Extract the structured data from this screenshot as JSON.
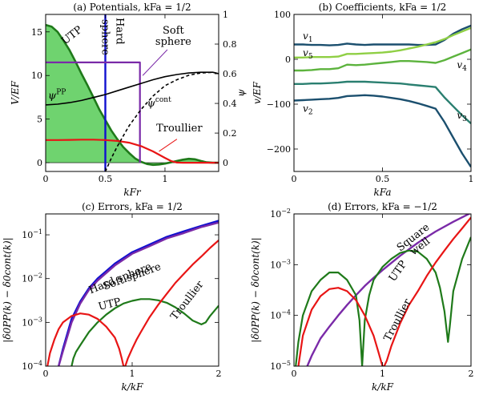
{
  "colors": {
    "utp": "#1f7a1a",
    "utp_fill": "#6fd36f",
    "hard": "#1010d0",
    "soft": "#7a2aa8",
    "troullier": "#e81515",
    "coef_dark": "#1b4f6e",
    "coef_mid": "#2a7f70",
    "coef_light": "#5cb33d",
    "coef_lighter": "#8fcf44"
  },
  "chart_data": [
    {
      "id": "a",
      "type": "line",
      "title": "(a) Potentials, kFa = 1/2",
      "xlabel": "kFr",
      "ylabel": "V/EF",
      "y2label": "ψ",
      "xlim": [
        0,
        1.45
      ],
      "ylim": [
        -1,
        17
      ],
      "y2lim": [
        -0.0588,
        1.0
      ],
      "xticks": [
        "0",
        "0.5",
        "1"
      ],
      "xtick_values": [
        0,
        0.5,
        1
      ],
      "yticks": [
        "0",
        "5",
        "10",
        "15"
      ],
      "ytick_values": [
        0,
        5,
        10,
        15
      ],
      "y2ticks": [
        "0",
        "0.2",
        "0.4",
        "0.6",
        "0.8",
        "1"
      ],
      "y2tick_values": [
        0,
        0.2,
        0.4,
        0.6,
        0.8,
        1.0
      ],
      "series": [
        {
          "key": "utp",
          "axis": "left",
          "x": [
            0,
            0.05,
            0.1,
            0.15,
            0.2,
            0.25,
            0.3,
            0.35,
            0.4,
            0.45,
            0.5,
            0.55,
            0.6,
            0.65,
            0.7,
            0.75,
            0.8,
            0.85,
            0.9,
            0.95,
            1.0,
            1.05,
            1.1,
            1.15,
            1.2,
            1.25,
            1.3,
            1.35,
            1.4,
            1.45
          ],
          "y": [
            15.8,
            15.6,
            15.0,
            14.0,
            12.9,
            11.6,
            10.2,
            8.9,
            7.5,
            6.1,
            4.9,
            3.7,
            2.7,
            1.8,
            1.1,
            0.5,
            0.1,
            -0.15,
            -0.25,
            -0.2,
            -0.1,
            0.05,
            0.2,
            0.35,
            0.45,
            0.4,
            0.2,
            0.05,
            0,
            0
          ]
        },
        {
          "key": "hard",
          "axis": "left",
          "x": [
            0.5,
            0.5
          ],
          "y": [
            -1,
            17
          ]
        },
        {
          "key": "soft",
          "axis": "left",
          "x": [
            0,
            0.79,
            0.79
          ],
          "y": [
            11.5,
            11.5,
            0
          ]
        },
        {
          "key": "troullier",
          "axis": "left",
          "x": [
            0,
            0.1,
            0.2,
            0.3,
            0.4,
            0.5,
            0.6,
            0.7,
            0.8,
            0.9,
            1.0,
            1.05,
            1.1,
            1.15,
            1.2,
            1.25,
            1.3,
            1.4,
            1.45
          ],
          "y": [
            2.6,
            2.6,
            2.62,
            2.65,
            2.65,
            2.6,
            2.5,
            2.3,
            1.9,
            1.3,
            0.55,
            0.2,
            0.02,
            0,
            0,
            0,
            0,
            0,
            0
          ]
        },
        {
          "key": "psipp",
          "axis": "right",
          "x": [
            0,
            0.1,
            0.2,
            0.3,
            0.4,
            0.5,
            0.6,
            0.7,
            0.8,
            0.9,
            1.0,
            1.1,
            1.2,
            1.3,
            1.4,
            1.45
          ],
          "y": [
            0.39,
            0.395,
            0.405,
            0.42,
            0.44,
            0.46,
            0.485,
            0.51,
            0.535,
            0.56,
            0.58,
            0.595,
            0.605,
            0.61,
            0.61,
            0.6
          ]
        }
      ],
      "psicont": {
        "x": [
          0.5,
          0.55,
          0.6,
          0.65,
          0.7,
          0.8,
          0.9,
          1.0,
          1.1,
          1.2,
          1.3,
          1.4,
          1.45
        ],
        "y": [
          -0.06,
          0.03,
          0.11,
          0.18,
          0.25,
          0.36,
          0.45,
          0.52,
          0.56,
          0.59,
          0.605,
          0.61,
          0.6
        ]
      },
      "labels": {
        "utp": "UTP",
        "hard1": "Hard",
        "hard2": "sphere",
        "soft1": "Soft",
        "soft2": "sphere",
        "troullier": "Troullier",
        "psipp": "ψPP",
        "psicont": "ψcont"
      }
    },
    {
      "id": "b",
      "type": "line",
      "title": "(b) Coefficients, kFa = 1/2",
      "xlabel": "kFa",
      "ylabel": "v/EF",
      "xlim": [
        0,
        1
      ],
      "ylim": [
        -250,
        100
      ],
      "xticks": [
        "0",
        "0.5",
        "1"
      ],
      "xtick_values": [
        0,
        0.5,
        1
      ],
      "yticks": [
        "100",
        "0",
        "−100",
        "−200"
      ],
      "ytick_values": [
        100,
        0,
        -100,
        -200
      ],
      "x": [
        0,
        0.05,
        0.1,
        0.15,
        0.2,
        0.25,
        0.3,
        0.35,
        0.4,
        0.45,
        0.5,
        0.55,
        0.6,
        0.65,
        0.7,
        0.75,
        0.8,
        0.85,
        0.9,
        0.95,
        1.0
      ],
      "series": [
        {
          "name": "v1",
          "key": "coef_dark",
          "y": [
            33,
            33,
            32,
            32,
            31,
            32,
            35,
            33,
            32,
            33,
            33,
            33,
            33,
            33,
            32,
            32,
            33,
            43,
            57,
            67,
            75
          ]
        },
        {
          "name": "v5",
          "key": "coef_lighter",
          "y": [
            4,
            4,
            5,
            5,
            5,
            6,
            12,
            12,
            13,
            14,
            15,
            17,
            20,
            24,
            28,
            33,
            38,
            45,
            54,
            62,
            70
          ]
        },
        {
          "name": "v4",
          "key": "coef_light",
          "y": [
            -25,
            -25,
            -24,
            -22,
            -22,
            -20,
            -12,
            -13,
            -12,
            -10,
            -8,
            -6,
            -4,
            -4,
            -5,
            -6,
            -8,
            -2,
            6,
            14,
            22
          ]
        },
        {
          "name": "v3",
          "key": "coef_mid",
          "y": [
            -55,
            -55,
            -54,
            -54,
            -53,
            -52,
            -50,
            -50,
            -50,
            -51,
            -52,
            -53,
            -54,
            -56,
            -58,
            -60,
            -62,
            -85,
            -105,
            -125,
            -143
          ]
        },
        {
          "name": "v2",
          "key": "coef_dark",
          "y": [
            -92,
            -91,
            -90,
            -89,
            -88,
            -86,
            -82,
            -81,
            -80,
            -81,
            -83,
            -86,
            -89,
            -93,
            -98,
            -104,
            -110,
            -140,
            -175,
            -210,
            -240
          ]
        }
      ],
      "labels": {
        "v1": "v1",
        "v5": "v5",
        "v4": "v4",
        "v3": "v3",
        "v2": "v2"
      }
    },
    {
      "id": "c",
      "type": "line",
      "title": "(c) Errors, kFa = 1/2",
      "xlabel": "k/kF",
      "ylabel": "|δ0PP(k) − δ0cont(k)|",
      "yscale": "log",
      "xlim": [
        0,
        2
      ],
      "ylim": [
        0.0001,
        0.3
      ],
      "xticks": [
        "0",
        "1",
        "2"
      ],
      "xtick_values": [
        0,
        1,
        2
      ],
      "yticks": [
        "10−4",
        "10−3",
        "10−2",
        "10−1"
      ],
      "ytick_values": [
        0.0001,
        0.001,
        0.01,
        0.1
      ],
      "series": [
        {
          "key": "hard",
          "x": [
            0.15,
            0.2,
            0.3,
            0.4,
            0.5,
            0.6,
            0.8,
            1.0,
            1.2,
            1.4,
            1.6,
            1.8,
            2.0
          ],
          "y": [
            0.0001,
            0.00025,
            0.0012,
            0.003,
            0.006,
            0.01,
            0.022,
            0.04,
            0.06,
            0.09,
            0.12,
            0.16,
            0.21
          ]
        },
        {
          "key": "soft",
          "x": [
            0.15,
            0.2,
            0.3,
            0.4,
            0.5,
            0.6,
            0.8,
            1.0,
            1.2,
            1.4,
            1.6,
            1.8,
            2.0
          ],
          "y": [
            0.0001,
            0.00022,
            0.001,
            0.0027,
            0.0055,
            0.009,
            0.02,
            0.037,
            0.055,
            0.083,
            0.11,
            0.15,
            0.19
          ]
        },
        {
          "key": "utp",
          "x": [
            0.3,
            0.32,
            0.35,
            0.4,
            0.5,
            0.6,
            0.7,
            0.8,
            0.9,
            1.0,
            1.1,
            1.2,
            1.3,
            1.4,
            1.5,
            1.6,
            1.7,
            1.8,
            1.85,
            1.9,
            2.0
          ],
          "y": [
            0.0001,
            0.00015,
            0.00021,
            0.0003,
            0.0006,
            0.001,
            0.0015,
            0.0021,
            0.0027,
            0.0031,
            0.0034,
            0.0034,
            0.0032,
            0.0028,
            0.0022,
            0.0016,
            0.0011,
            0.0009,
            0.001,
            0.0014,
            0.0024
          ]
        },
        {
          "key": "troullier",
          "x": [
            0.02,
            0.05,
            0.1,
            0.15,
            0.2,
            0.3,
            0.4,
            0.5,
            0.6,
            0.7,
            0.8,
            0.85,
            0.88,
            0.9,
            0.92,
            0.95,
            1.0,
            1.05,
            1.1,
            1.2,
            1.3,
            1.4,
            1.5,
            1.6,
            1.7,
            1.8,
            1.9,
            2.0
          ],
          "y": [
            0.0001,
            0.0002,
            0.0004,
            0.0007,
            0.001,
            0.0014,
            0.0016,
            0.0015,
            0.0012,
            0.0008,
            0.00045,
            0.00025,
            0.00015,
            0.0001,
            0.0001,
            0.00015,
            0.00025,
            0.0004,
            0.0006,
            0.0013,
            0.0025,
            0.0045,
            0.008,
            0.013,
            0.021,
            0.032,
            0.05,
            0.075
          ]
        }
      ],
      "labels": {
        "hard": "Hard sphere",
        "soft": "Soft sphere",
        "utp": "UTP",
        "troullier": "Troullier"
      }
    },
    {
      "id": "d",
      "type": "line",
      "title": "(d) Errors, kFa = −1/2",
      "xlabel": "k/kF",
      "ylabel": "|δ0PP(k) − δ0cont(k)|",
      "yscale": "log",
      "xlim": [
        0,
        2
      ],
      "ylim": [
        1e-05,
        0.01
      ],
      "xticks": [
        "0",
        "1",
        "2"
      ],
      "xtick_values": [
        0,
        1,
        2
      ],
      "yticks": [
        "10−5",
        "10−4",
        "10−3",
        "10−2"
      ],
      "ytick_values": [
        1e-05,
        0.0001,
        0.001,
        0.01
      ],
      "series": [
        {
          "key": "soft",
          "x": [
            0.15,
            0.2,
            0.3,
            0.4,
            0.5,
            0.6,
            0.7,
            0.8,
            0.9,
            1.0,
            1.2,
            1.4,
            1.6,
            1.8,
            2.0
          ],
          "y": [
            1e-05,
            1.6e-05,
            3.5e-05,
            6e-05,
            0.0001,
            0.00016,
            0.00025,
            0.00038,
            0.00055,
            0.00078,
            0.0015,
            0.0027,
            0.0045,
            0.007,
            0.0105
          ]
        },
        {
          "key": "utp",
          "x": [
            0.02,
            0.05,
            0.1,
            0.2,
            0.3,
            0.4,
            0.5,
            0.6,
            0.7,
            0.74,
            0.77,
            0.8,
            0.85,
            0.9,
            1.0,
            1.1,
            1.2,
            1.3,
            1.4,
            1.5,
            1.6,
            1.65,
            1.7,
            1.74,
            1.76,
            1.8,
            1.9,
            2.0
          ],
          "y": [
            1e-05,
            3e-05,
            0.0001,
            0.0003,
            0.0005,
            0.0007,
            0.0007,
            0.0005,
            0.00025,
            8e-05,
            1e-05,
            8e-05,
            0.00025,
            0.0005,
            0.0009,
            0.0013,
            0.0017,
            0.0019,
            0.0018,
            0.0013,
            0.0007,
            0.00035,
            0.00012,
            3e-05,
            6e-05,
            0.0003,
            0.0013,
            0.0035
          ]
        },
        {
          "key": "troullier",
          "x": [
            0.05,
            0.1,
            0.2,
            0.3,
            0.4,
            0.5,
            0.6,
            0.7,
            0.8,
            0.9,
            0.95,
            1.0,
            1.02,
            1.05,
            1.1,
            1.2,
            1.3,
            1.4,
            1.5,
            1.6,
            1.7,
            1.8,
            1.9,
            2.0
          ],
          "y": [
            1e-05,
            4e-05,
            0.00013,
            0.00024,
            0.00033,
            0.00035,
            0.0003,
            0.0002,
            0.0001,
            4e-05,
            2e-05,
            1e-05,
            1e-05,
            1.3e-05,
            2.5e-05,
            7e-05,
            0.00016,
            0.0003,
            0.0006,
            0.0011,
            0.0019,
            0.0032,
            0.0052,
            0.0085
          ]
        }
      ],
      "labels": {
        "square1": "Square",
        "square2": "well",
        "utp": "UTP",
        "troullier": "Troullier"
      }
    }
  ]
}
